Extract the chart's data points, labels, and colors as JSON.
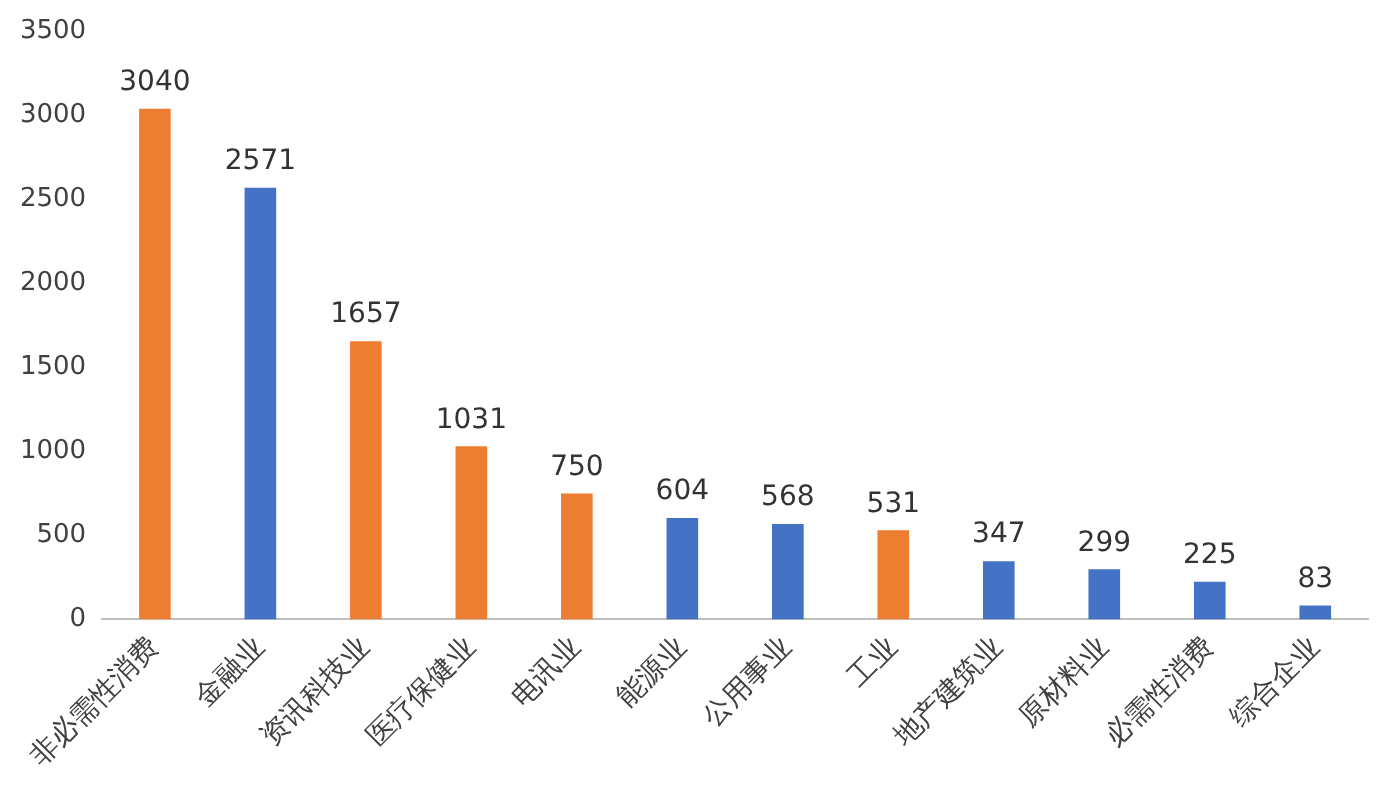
{
  "chart_data": {
    "type": "bar",
    "categories": [
      "非必需性消费",
      "金融业",
      "资讯科技业",
      "医疗保健业",
      "电讯业",
      "能源业",
      "公用事业",
      "工业",
      "地产建筑业",
      "原材料业",
      "必需性消费",
      "综合企业"
    ],
    "values": [
      3040,
      2571,
      1657,
      1031,
      750,
      604,
      568,
      531,
      347,
      299,
      225,
      83
    ],
    "colors": [
      "#ed7d31",
      "#4472c4",
      "#ed7d31",
      "#ed7d31",
      "#ed7d31",
      "#4472c4",
      "#4472c4",
      "#ed7d31",
      "#4472c4",
      "#4472c4",
      "#4472c4",
      "#4472c4"
    ],
    "ylim": [
      0,
      3500
    ],
    "yticks": [
      0,
      500,
      1000,
      1500,
      2000,
      2500,
      3000,
      3500
    ],
    "grid": false,
    "legend": false,
    "data_labels": true
  }
}
